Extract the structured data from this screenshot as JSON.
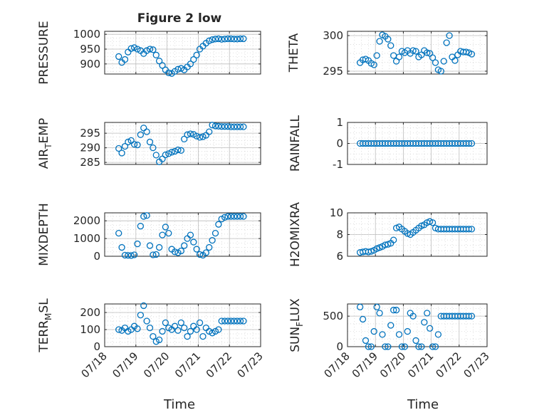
{
  "figure": {
    "title": "Figure 2 low",
    "marker_color": "#0072bd",
    "date_ticks": [
      "07/18",
      "07/19",
      "07/20",
      "07/21",
      "07/22",
      "07/23"
    ],
    "time_label": "Time"
  },
  "chart_data": [
    {
      "id": "pressure",
      "type": "scatter",
      "ylabel": "PRESSURE",
      "ylabel_sub": "",
      "title": "Figure 2 low",
      "xlim": [
        "07/18",
        "07/23"
      ],
      "ylim": [
        866,
        1010
      ],
      "yticks": [
        "900",
        "950",
        "1000"
      ],
      "ytick_values": [
        900,
        950,
        1000
      ],
      "xticklabels_shown": false,
      "grid": true,
      "minor_grid": true,
      "x": [
        0.45,
        0.55,
        0.65,
        0.75,
        0.85,
        0.95,
        1.05,
        1.15,
        1.25,
        1.35,
        1.45,
        1.55,
        1.65,
        1.75,
        1.85,
        1.95,
        2.05,
        2.15,
        2.25,
        2.35,
        2.45,
        2.55,
        2.65,
        2.75,
        2.85,
        2.95,
        3.05,
        3.15,
        3.25,
        3.35,
        3.45,
        3.55,
        3.65,
        3.75,
        3.85,
        3.95,
        4.05,
        4.15,
        4.25,
        4.35,
        4.45
      ],
      "y": [
        925,
        905,
        915,
        940,
        952,
        955,
        950,
        945,
        935,
        945,
        950,
        948,
        930,
        910,
        895,
        880,
        870,
        868,
        875,
        882,
        885,
        880,
        890,
        900,
        915,
        930,
        950,
        960,
        970,
        978,
        982,
        984,
        985,
        983,
        984,
        985,
        985,
        984,
        984,
        985,
        985
      ]
    },
    {
      "id": "theta",
      "type": "scatter",
      "ylabel": "THETA",
      "ylabel_sub": "",
      "xlim": [
        "07/18",
        "07/23"
      ],
      "ylim": [
        294.6,
        300.6
      ],
      "yticks": [
        "295",
        "300"
      ],
      "ytick_values": [
        295,
        300
      ],
      "xticklabels_shown": false,
      "grid": true,
      "minor_grid": true,
      "x": [
        0.45,
        0.55,
        0.65,
        0.75,
        0.85,
        0.95,
        1.05,
        1.15,
        1.25,
        1.35,
        1.45,
        1.55,
        1.65,
        1.75,
        1.85,
        1.95,
        2.05,
        2.15,
        2.25,
        2.35,
        2.45,
        2.55,
        2.65,
        2.75,
        2.85,
        2.95,
        3.05,
        3.15,
        3.25,
        3.35,
        3.45,
        3.55,
        3.65,
        3.75,
        3.85,
        3.95,
        4.05,
        4.15,
        4.25,
        4.35,
        4.45
      ],
      "y": [
        296.2,
        296.6,
        296.7,
        296.5,
        296.1,
        295.9,
        297.2,
        299.2,
        300.1,
        299.9,
        299.5,
        298.6,
        297.2,
        296.4,
        297.0,
        297.8,
        297.6,
        297.9,
        297.5,
        297.9,
        297.8,
        297.0,
        297.3,
        297.9,
        297.6,
        297.5,
        296.9,
        296.2,
        295.2,
        295.0,
        296.4,
        299.0,
        300.0,
        297.0,
        296.5,
        297.3,
        297.8,
        297.7,
        297.7,
        297.6,
        297.4
      ]
    },
    {
      "id": "air_temp",
      "type": "scatter",
      "ylabel": "AIR",
      "ylabel_sub": "T",
      "ylabel_suffix": "EMP",
      "xlim": [
        "07/18",
        "07/23"
      ],
      "ylim": [
        284.3,
        298.7
      ],
      "yticks": [
        "285",
        "290",
        "295"
      ],
      "ytick_values": [
        285,
        290,
        295
      ],
      "xticklabels_shown": false,
      "grid": true,
      "minor_grid": true,
      "x": [
        0.45,
        0.55,
        0.65,
        0.75,
        0.85,
        0.95,
        1.05,
        1.15,
        1.25,
        1.35,
        1.45,
        1.55,
        1.65,
        1.75,
        1.85,
        1.95,
        2.05,
        2.15,
        2.25,
        2.35,
        2.45,
        2.55,
        2.65,
        2.75,
        2.85,
        2.95,
        3.05,
        3.15,
        3.25,
        3.35,
        3.45,
        3.55,
        3.65,
        3.75,
        3.85,
        3.95,
        4.05,
        4.15,
        4.25,
        4.35,
        4.45
      ],
      "y": [
        289.8,
        288.2,
        290.5,
        292.0,
        292.5,
        291.2,
        291.0,
        294.5,
        296.8,
        295.5,
        292.0,
        290.0,
        287.5,
        285.2,
        286.2,
        287.6,
        288.0,
        288.5,
        288.8,
        289.3,
        289.1,
        293.0,
        294.5,
        294.8,
        294.6,
        294.0,
        293.6,
        293.8,
        294.3,
        295.5,
        297.8,
        297.5,
        297.4,
        297.3,
        297.3,
        297.3,
        297.2,
        297.2,
        297.2,
        297.2,
        297.2
      ]
    },
    {
      "id": "rainfall",
      "type": "scatter",
      "ylabel": "RAINFALL",
      "ylabel_sub": "",
      "xlim": [
        "07/18",
        "07/23"
      ],
      "ylim": [
        -1,
        1
      ],
      "yticks": [
        "-1",
        "0",
        "1"
      ],
      "ytick_values": [
        -1,
        0,
        1
      ],
      "xticklabels_shown": false,
      "grid": true,
      "minor_grid": true,
      "x": [
        0.45,
        0.55,
        0.65,
        0.75,
        0.85,
        0.95,
        1.05,
        1.15,
        1.25,
        1.35,
        1.45,
        1.55,
        1.65,
        1.75,
        1.85,
        1.95,
        2.05,
        2.15,
        2.25,
        2.35,
        2.45,
        2.55,
        2.65,
        2.75,
        2.85,
        2.95,
        3.05,
        3.15,
        3.25,
        3.35,
        3.45,
        3.55,
        3.65,
        3.75,
        3.85,
        3.95,
        4.05,
        4.15,
        4.25,
        4.35,
        4.45
      ],
      "y": [
        0,
        0,
        0,
        0,
        0,
        0,
        0,
        0,
        0,
        0,
        0,
        0,
        0,
        0,
        0,
        0,
        0,
        0,
        0,
        0,
        0,
        0,
        0,
        0,
        0,
        0,
        0,
        0,
        0,
        0,
        0,
        0,
        0,
        0,
        0,
        0,
        0,
        0,
        0,
        0,
        0
      ]
    },
    {
      "id": "mixdepth",
      "type": "scatter",
      "ylabel": "MIXDEPTH",
      "ylabel_sub": "",
      "xlim": [
        "07/18",
        "07/23"
      ],
      "ylim": [
        0,
        2450
      ],
      "yticks": [
        "0",
        "1000",
        "2000"
      ],
      "ytick_values": [
        0,
        1000,
        2000
      ],
      "xticklabels_shown": false,
      "grid": true,
      "minor_grid": true,
      "x": [
        0.45,
        0.55,
        0.65,
        0.75,
        0.85,
        0.95,
        1.05,
        1.15,
        1.25,
        1.35,
        1.45,
        1.55,
        1.65,
        1.75,
        1.85,
        1.95,
        2.05,
        2.15,
        2.25,
        2.35,
        2.45,
        2.55,
        2.65,
        2.75,
        2.85,
        2.95,
        3.05,
        3.15,
        3.25,
        3.35,
        3.45,
        3.55,
        3.65,
        3.75,
        3.85,
        3.95,
        4.05,
        4.15,
        4.25,
        4.35,
        4.45
      ],
      "y": [
        1300,
        500,
        60,
        50,
        40,
        80,
        700,
        1700,
        2250,
        2300,
        600,
        80,
        100,
        500,
        1200,
        1650,
        1300,
        400,
        250,
        200,
        300,
        600,
        1000,
        1200,
        800,
        400,
        100,
        60,
        200,
        500,
        900,
        1300,
        1800,
        2100,
        2200,
        2250,
        2250,
        2250,
        2250,
        2250,
        2250
      ]
    },
    {
      "id": "h2omixra",
      "type": "scatter",
      "ylabel": "H2OMIXRA",
      "ylabel_sub": "",
      "xlim": [
        "07/18",
        "07/23"
      ],
      "ylim": [
        6,
        10
      ],
      "yticks": [
        "6",
        "8",
        "10"
      ],
      "ytick_values": [
        6,
        8,
        10
      ],
      "xticklabels_shown": false,
      "grid": true,
      "minor_grid": true,
      "x": [
        0.45,
        0.55,
        0.65,
        0.75,
        0.85,
        0.95,
        1.05,
        1.15,
        1.25,
        1.35,
        1.45,
        1.55,
        1.65,
        1.75,
        1.85,
        1.95,
        2.05,
        2.15,
        2.25,
        2.35,
        2.45,
        2.55,
        2.65,
        2.75,
        2.85,
        2.95,
        3.05,
        3.15,
        3.25,
        3.35,
        3.45,
        3.55,
        3.65,
        3.75,
        3.85,
        3.95,
        4.05,
        4.15,
        4.25,
        4.35,
        4.45
      ],
      "y": [
        6.35,
        6.4,
        6.45,
        6.4,
        6.45,
        6.55,
        6.7,
        6.8,
        6.9,
        7.05,
        7.1,
        7.2,
        7.5,
        8.6,
        8.7,
        8.5,
        8.3,
        8.1,
        8.0,
        8.2,
        8.4,
        8.6,
        8.8,
        8.9,
        9.1,
        9.2,
        9.1,
        8.6,
        8.5,
        8.5,
        8.5,
        8.5,
        8.5,
        8.5,
        8.5,
        8.5,
        8.5,
        8.5,
        8.5,
        8.5,
        8.5
      ]
    },
    {
      "id": "terr_msl",
      "type": "scatter",
      "ylabel": "TERR",
      "ylabel_sub": "M",
      "ylabel_suffix": "SL",
      "xlim": [
        "07/18",
        "07/23"
      ],
      "ylim": [
        0,
        250
      ],
      "yticks": [
        "0",
        "100",
        "200"
      ],
      "ytick_values": [
        0,
        100,
        200
      ],
      "xticklabels_shown": true,
      "grid": true,
      "minor_grid": true,
      "x": [
        0.45,
        0.55,
        0.65,
        0.75,
        0.85,
        0.95,
        1.05,
        1.15,
        1.25,
        1.35,
        1.45,
        1.55,
        1.65,
        1.75,
        1.85,
        1.95,
        2.05,
        2.15,
        2.25,
        2.35,
        2.45,
        2.55,
        2.65,
        2.75,
        2.85,
        2.95,
        3.05,
        3.15,
        3.25,
        3.35,
        3.45,
        3.55,
        3.65,
        3.75,
        3.85,
        3.95,
        4.05,
        4.15,
        4.25,
        4.35,
        4.45
      ],
      "y": [
        100,
        95,
        110,
        90,
        100,
        120,
        105,
        185,
        240,
        150,
        110,
        60,
        30,
        40,
        90,
        140,
        110,
        100,
        120,
        95,
        140,
        110,
        60,
        90,
        120,
        100,
        140,
        60,
        110,
        90,
        80,
        90,
        100,
        150,
        150,
        150,
        150,
        150,
        150,
        150,
        150
      ]
    },
    {
      "id": "sun_flux",
      "type": "scatter",
      "ylabel": "SUN",
      "ylabel_sub": "F",
      "ylabel_suffix": "LUX",
      "xlim": [
        "07/18",
        "07/23"
      ],
      "ylim": [
        0,
        700
      ],
      "yticks": [
        "0",
        "500"
      ],
      "ytick_values": [
        0,
        500
      ],
      "xticklabels_shown": true,
      "grid": true,
      "minor_grid": true,
      "x": [
        0.45,
        0.55,
        0.65,
        0.75,
        0.85,
        0.95,
        1.05,
        1.15,
        1.25,
        1.35,
        1.45,
        1.55,
        1.65,
        1.75,
        1.85,
        1.95,
        2.05,
        2.15,
        2.25,
        2.35,
        2.45,
        2.55,
        2.65,
        2.75,
        2.85,
        2.95,
        3.05,
        3.15,
        3.25,
        3.35,
        3.45,
        3.55,
        3.65,
        3.75,
        3.85,
        3.95,
        4.05,
        4.15,
        4.25,
        4.35,
        4.45
      ],
      "y": [
        650,
        450,
        100,
        0,
        0,
        250,
        650,
        550,
        200,
        0,
        0,
        350,
        600,
        600,
        200,
        0,
        0,
        250,
        550,
        500,
        100,
        0,
        0,
        400,
        550,
        300,
        0,
        0,
        200,
        500,
        500,
        500,
        500,
        500,
        500,
        500,
        500,
        500,
        500,
        500,
        500
      ]
    }
  ]
}
